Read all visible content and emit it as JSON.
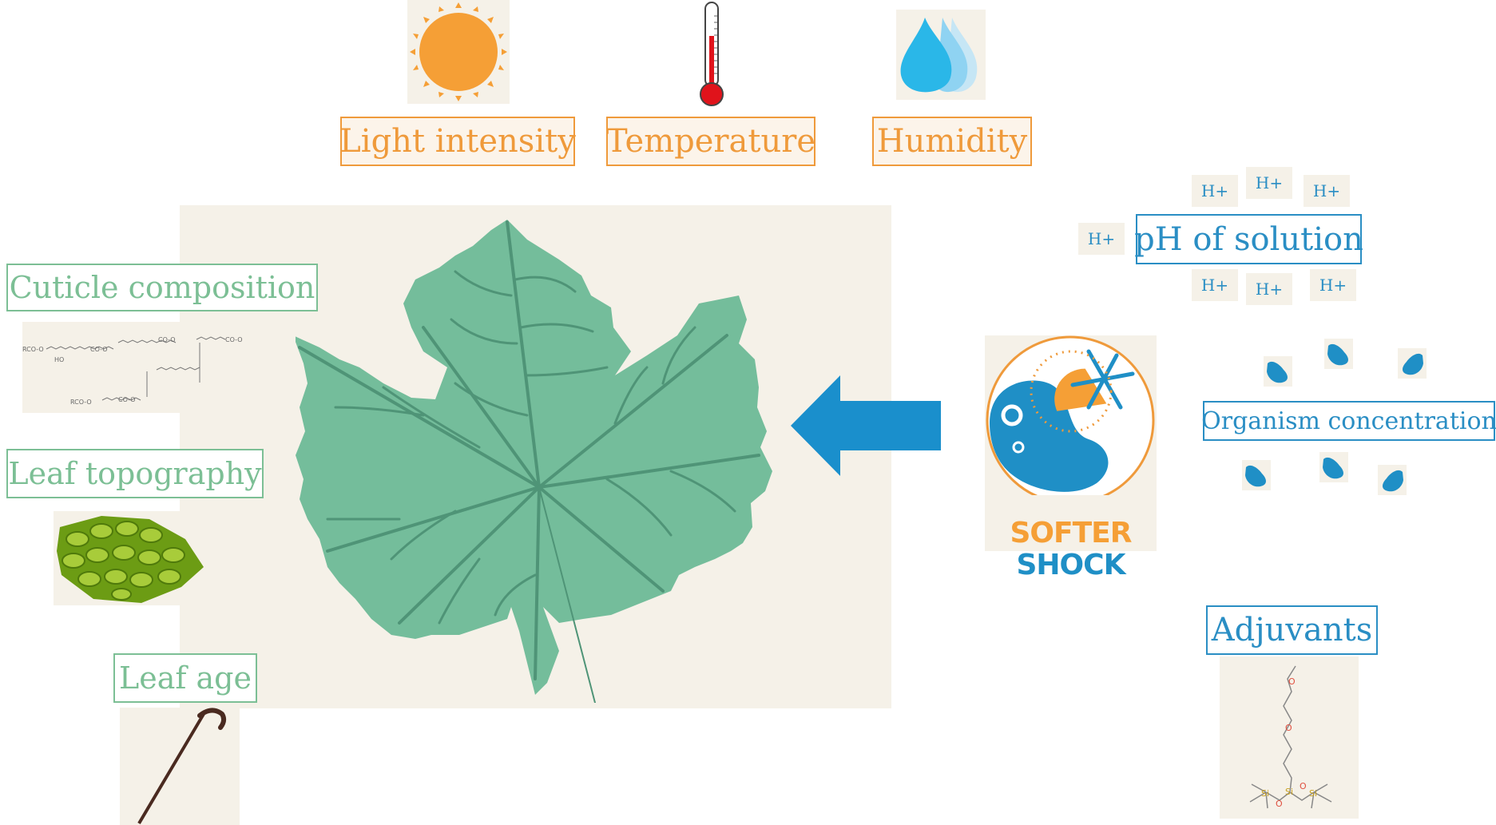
{
  "top_factors": [
    {
      "label": "Light intensity",
      "icon": "sun-icon"
    },
    {
      "label": "Temperature",
      "icon": "thermometer-icon"
    },
    {
      "label": "Humidity",
      "icon": "water-drops-icon"
    }
  ],
  "leaf_factors": {
    "cuticle": "Cuticle composition",
    "topography": "Leaf topography",
    "age": "Leaf age"
  },
  "solution_factors": {
    "ph": "pH of solution",
    "h_ion": "H+",
    "organism": "Organism concentration",
    "adjuvants": "Adjuvants"
  },
  "logo": {
    "word1": "SOFTER",
    "word2": "SHOCK"
  },
  "molecule_text": {
    "cuticle_groups": [
      "RCO-O",
      "CO-O",
      "CO-O",
      "CO-O",
      "CO-O",
      "RCO-O",
      "HO"
    ],
    "atoms": [
      "O",
      "O",
      "Si",
      "Si",
      "Si",
      "O",
      "O"
    ]
  },
  "colors": {
    "orange": "#ef9a3b",
    "green": "#7cbf95",
    "blue": "#2a8ec4",
    "leaf": "#74bd9b",
    "panel": "#f5f1e8"
  }
}
